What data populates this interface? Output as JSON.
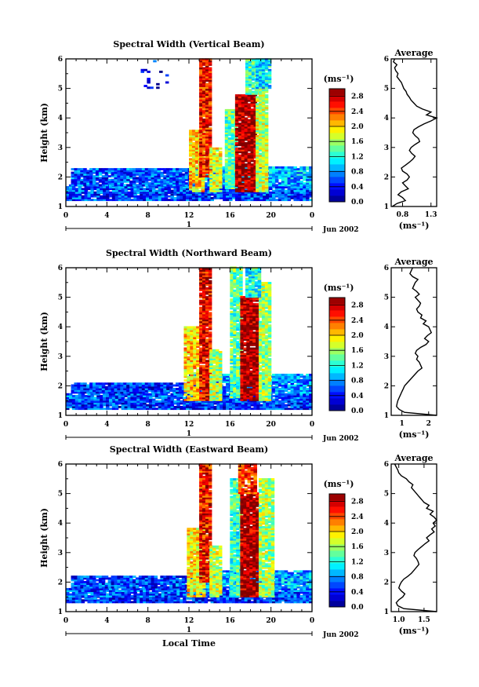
{
  "chart_data": [
    {
      "type": "heatmap",
      "title": "Spectral Width (Vertical Beam)",
      "xlabel": "",
      "ylabel": "Height (km)",
      "xticks": [
        "0",
        "4",
        "8",
        "12",
        "16",
        "20",
        "0"
      ],
      "yticks": [
        "1",
        "2",
        "3",
        "4",
        "5",
        "6"
      ],
      "xlim": [
        0,
        24
      ],
      "ylim": [
        1,
        6
      ],
      "day_label": "1",
      "date_label": "Jun 2002",
      "colorbar": {
        "unit": "(ms⁻¹)",
        "ticks": [
          "0.0",
          "0.4",
          "0.8",
          "1.2",
          "1.6",
          "2.0",
          "2.4",
          "2.8"
        ],
        "range": [
          0,
          3.0
        ]
      },
      "bands": [
        {
          "x": [
            0,
            24.0
          ],
          "y": [
            1.2,
            1.45
          ],
          "v": 0.55
        },
        {
          "x": [
            0,
            24.0
          ],
          "y": [
            1.45,
            1.7
          ],
          "v": 0.6
        },
        {
          "x": [
            0.5,
            12.0
          ],
          "y": [
            1.7,
            2.3
          ],
          "v": 0.6
        },
        {
          "x": [
            12.0,
            24.0
          ],
          "y": [
            1.7,
            2.35
          ],
          "v": 0.9
        },
        {
          "x": [
            12.0,
            13.5
          ],
          "y": [
            1.5,
            3.6
          ],
          "v": 2.0
        },
        {
          "x": [
            13.0,
            14.0
          ],
          "y": [
            2.0,
            6.0
          ],
          "v": 2.6
        },
        {
          "x": [
            14.0,
            15.0
          ],
          "y": [
            1.5,
            3.0
          ],
          "v": 1.8
        },
        {
          "x": [
            15.5,
            16.5
          ],
          "y": [
            1.6,
            4.3
          ],
          "v": 1.4
        },
        {
          "x": [
            16.5,
            18.5
          ],
          "y": [
            1.5,
            4.8
          ],
          "v": 2.9
        },
        {
          "x": [
            18.5,
            19.5
          ],
          "y": [
            1.5,
            5.2
          ],
          "v": 1.7
        },
        {
          "x": [
            17.5,
            18.5
          ],
          "y": [
            4.8,
            6.0
          ],
          "v": 1.3
        },
        {
          "x": [
            18.5,
            19.8
          ],
          "y": [
            5.0,
            6.0
          ],
          "v": 1.1
        },
        {
          "x": [
            7.0,
            10.0
          ],
          "y": [
            5.0,
            6.0
          ],
          "v": 0.4,
          "sparse": true
        }
      ],
      "profile": {
        "title": "Average",
        "xlabel": "(ms⁻¹)",
        "xticks": [
          "0.8",
          "1.3"
        ],
        "xlim": [
          0.6,
          1.4
        ],
        "height": [
          1.0,
          1.1,
          1.2,
          1.3,
          1.4,
          1.5,
          1.6,
          1.7,
          1.8,
          1.9,
          2.0,
          2.1,
          2.2,
          2.3,
          2.4,
          2.5,
          2.6,
          2.7,
          2.8,
          2.9,
          3.0,
          3.1,
          3.2,
          3.3,
          3.4,
          3.5,
          3.6,
          3.7,
          3.8,
          3.9,
          4.0,
          4.1,
          4.2,
          4.3,
          4.4,
          4.5,
          4.6,
          4.7,
          4.8,
          4.9,
          5.0,
          5.1,
          5.2,
          5.3,
          5.4,
          5.5,
          5.6,
          5.7,
          5.8,
          5.9,
          6.0
        ],
        "values": [
          0.62,
          0.7,
          0.85,
          0.8,
          0.72,
          0.78,
          0.9,
          0.85,
          0.8,
          0.88,
          0.92,
          0.88,
          0.8,
          0.78,
          0.85,
          0.92,
          0.98,
          1.02,
          0.96,
          0.92,
          0.95,
          1.02,
          1.1,
          1.08,
          1.02,
          0.98,
          1.0,
          1.08,
          1.18,
          1.3,
          1.4,
          1.22,
          1.3,
          1.15,
          1.05,
          1.0,
          0.95,
          0.92,
          0.88,
          0.86,
          0.82,
          0.8,
          0.78,
          0.74,
          0.7,
          0.72,
          0.68,
          0.66,
          0.7,
          0.64,
          0.66
        ]
      }
    },
    {
      "type": "heatmap",
      "title": "Spectral Width (Northward Beam)",
      "xlabel": "",
      "ylabel": "Height (km)",
      "xticks": [
        "0",
        "4",
        "8",
        "12",
        "16",
        "20",
        "0"
      ],
      "yticks": [
        "1",
        "2",
        "3",
        "4",
        "5",
        "6"
      ],
      "xlim": [
        0,
        24
      ],
      "ylim": [
        1,
        6
      ],
      "day_label": "1",
      "date_label": "Jun 2002",
      "colorbar": {
        "unit": "(ms⁻¹)",
        "ticks": [
          "0.0",
          "0.4",
          "0.8",
          "1.2",
          "1.6",
          "2.0",
          "2.4",
          "2.8"
        ],
        "range": [
          0,
          3.0
        ]
      },
      "bands": [
        {
          "x": [
            0,
            24.0
          ],
          "y": [
            1.2,
            1.45
          ],
          "v": 0.5
        },
        {
          "x": [
            0,
            24.0
          ],
          "y": [
            1.45,
            1.75
          ],
          "v": 0.6
        },
        {
          "x": [
            0.5,
            12.0
          ],
          "y": [
            1.75,
            2.1
          ],
          "v": 0.5
        },
        {
          "x": [
            12.0,
            24.0
          ],
          "y": [
            1.75,
            2.4
          ],
          "v": 0.8
        },
        {
          "x": [
            11.5,
            13.0
          ],
          "y": [
            1.5,
            4.0
          ],
          "v": 2.0
        },
        {
          "x": [
            13.0,
            14.0
          ],
          "y": [
            1.5,
            6.0
          ],
          "v": 2.7
        },
        {
          "x": [
            14.0,
            15.0
          ],
          "y": [
            1.5,
            3.2
          ],
          "v": 1.6
        },
        {
          "x": [
            16.0,
            17.0
          ],
          "y": [
            1.6,
            6.0
          ],
          "v": 1.4
        },
        {
          "x": [
            17.0,
            18.8
          ],
          "y": [
            1.5,
            5.0
          ],
          "v": 2.9
        },
        {
          "x": [
            18.8,
            20.0
          ],
          "y": [
            1.5,
            5.5
          ],
          "v": 1.6
        },
        {
          "x": [
            17.5,
            19.0
          ],
          "y": [
            5.0,
            6.0
          ],
          "v": 1.2
        }
      ],
      "profile": {
        "title": "Average",
        "xlabel": "(ms⁻¹)",
        "xticks": [
          "1",
          "2"
        ],
        "xlim": [
          0.6,
          2.3
        ],
        "height": [
          1.0,
          1.1,
          1.2,
          1.3,
          1.4,
          1.5,
          1.6,
          1.7,
          1.8,
          1.9,
          2.0,
          2.1,
          2.2,
          2.3,
          2.4,
          2.5,
          2.6,
          2.7,
          2.8,
          2.9,
          3.0,
          3.1,
          3.2,
          3.3,
          3.4,
          3.5,
          3.6,
          3.7,
          3.8,
          3.9,
          4.0,
          4.1,
          4.2,
          4.3,
          4.4,
          4.5,
          4.6,
          4.7,
          4.8,
          4.9,
          5.0,
          5.1,
          5.2,
          5.3,
          5.4,
          5.5,
          5.6,
          5.7,
          5.8,
          5.9,
          6.0
        ],
        "values": [
          2.3,
          1.1,
          0.9,
          0.8,
          0.82,
          0.85,
          0.9,
          0.95,
          1.0,
          1.05,
          1.1,
          1.2,
          1.3,
          1.4,
          1.5,
          1.6,
          1.75,
          1.7,
          1.65,
          1.55,
          1.6,
          1.5,
          1.55,
          1.7,
          1.9,
          2.0,
          1.85,
          1.95,
          2.1,
          2.05,
          2.0,
          1.8,
          1.9,
          1.7,
          1.75,
          1.6,
          1.55,
          1.65,
          1.7,
          1.6,
          1.5,
          1.65,
          1.55,
          1.4,
          1.45,
          1.5,
          1.6,
          1.4,
          1.3,
          1.35,
          1.4
        ]
      }
    },
    {
      "type": "heatmap",
      "title": "Spectral Width (Eastward Beam)",
      "xlabel": "Local Time",
      "ylabel": "Height (km)",
      "xticks": [
        "0",
        "4",
        "8",
        "12",
        "16",
        "20",
        "0"
      ],
      "yticks": [
        "1",
        "2",
        "3",
        "4",
        "5",
        "6"
      ],
      "xlim": [
        0,
        24
      ],
      "ylim": [
        1,
        6
      ],
      "day_label": "1",
      "date_label": "Jun 2002",
      "colorbar": {
        "unit": "(ms⁻¹)",
        "ticks": [
          "0.0",
          "0.4",
          "0.8",
          "1.2",
          "1.6",
          "2.0",
          "2.4",
          "2.8"
        ],
        "range": [
          0,
          3.0
        ]
      },
      "bands": [
        {
          "x": [
            0,
            24.0
          ],
          "y": [
            1.3,
            1.5
          ],
          "v": 0.5
        },
        {
          "x": [
            0,
            24.0
          ],
          "y": [
            1.5,
            1.8
          ],
          "v": 0.6
        },
        {
          "x": [
            0.5,
            12.0
          ],
          "y": [
            1.8,
            2.2
          ],
          "v": 0.55
        },
        {
          "x": [
            12.0,
            24.0
          ],
          "y": [
            1.8,
            2.4
          ],
          "v": 0.9
        },
        {
          "x": [
            11.8,
            13.5
          ],
          "y": [
            1.5,
            3.8
          ],
          "v": 1.9
        },
        {
          "x": [
            13.0,
            14.0
          ],
          "y": [
            2.0,
            6.0
          ],
          "v": 2.6
        },
        {
          "x": [
            14.0,
            15.0
          ],
          "y": [
            1.5,
            3.2
          ],
          "v": 1.7
        },
        {
          "x": [
            16.0,
            17.0
          ],
          "y": [
            1.5,
            5.5
          ],
          "v": 1.3
        },
        {
          "x": [
            17.0,
            18.8
          ],
          "y": [
            1.5,
            5.0
          ],
          "v": 2.9
        },
        {
          "x": [
            18.8,
            20.2
          ],
          "y": [
            1.5,
            5.5
          ],
          "v": 1.6
        },
        {
          "x": [
            16.8,
            18.5
          ],
          "y": [
            5.0,
            6.0
          ],
          "v": 2.5
        }
      ],
      "profile": {
        "title": "Average",
        "xlabel": "(ms⁻¹)",
        "xticks": [
          "1.0",
          "1.5"
        ],
        "xlim": [
          0.85,
          1.75
        ],
        "height": [
          1.0,
          1.1,
          1.2,
          1.3,
          1.4,
          1.5,
          1.6,
          1.7,
          1.8,
          1.9,
          2.0,
          2.1,
          2.2,
          2.3,
          2.4,
          2.5,
          2.6,
          2.7,
          2.8,
          2.9,
          3.0,
          3.1,
          3.2,
          3.3,
          3.4,
          3.5,
          3.6,
          3.7,
          3.8,
          3.9,
          4.0,
          4.1,
          4.2,
          4.3,
          4.4,
          4.5,
          4.6,
          4.7,
          4.8,
          4.9,
          5.0,
          5.1,
          5.2,
          5.3,
          5.4,
          5.5,
          5.6,
          5.7,
          5.8,
          5.9,
          6.0
        ],
        "values": [
          1.75,
          1.1,
          0.98,
          0.95,
          1.0,
          1.08,
          1.12,
          1.05,
          1.0,
          1.02,
          1.05,
          1.1,
          1.18,
          1.25,
          1.3,
          1.35,
          1.4,
          1.38,
          1.35,
          1.3,
          1.32,
          1.38,
          1.45,
          1.52,
          1.6,
          1.55,
          1.62,
          1.7,
          1.65,
          1.72,
          1.68,
          1.75,
          1.7,
          1.62,
          1.68,
          1.55,
          1.6,
          1.5,
          1.45,
          1.4,
          1.35,
          1.3,
          1.25,
          1.28,
          1.2,
          1.15,
          1.05,
          1.0,
          0.98,
          0.95,
          0.92
        ]
      }
    }
  ]
}
